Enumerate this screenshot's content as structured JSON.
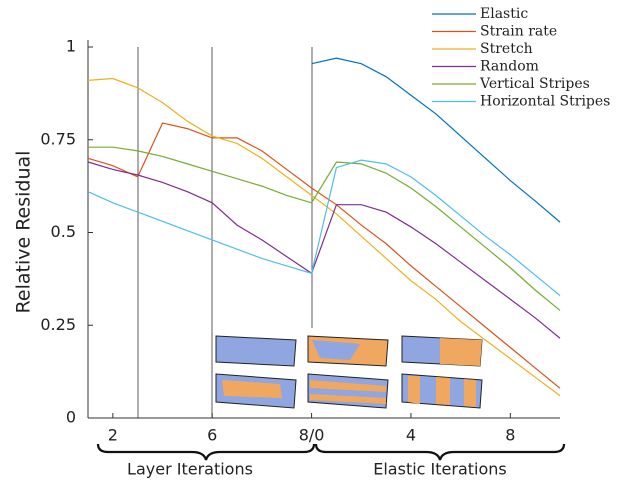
{
  "chart_data": {
    "type": "line",
    "ylabel": "Relative Residual",
    "x": [
      1,
      2,
      3,
      4,
      5,
      6,
      7,
      8,
      9,
      10,
      11,
      12,
      13,
      14,
      15,
      16,
      17,
      18,
      19,
      20
    ],
    "xlim": [
      1,
      20
    ],
    "xticks": [
      2,
      6,
      {
        "value": 10,
        "label": "8/0"
      },
      {
        "value": 14,
        "label": "4"
      },
      {
        "value": 18,
        "label": "8"
      }
    ],
    "ylim": [
      0,
      1
    ],
    "yticks": [
      0,
      0.25,
      0.5,
      0.75,
      1
    ],
    "annotations": [
      "Layer Iterations",
      "Elastic Iterations"
    ],
    "legend": "top-right",
    "series": [
      {
        "name": "Elastic",
        "color": "#0072bd",
        "values": [
          null,
          null,
          null,
          null,
          null,
          null,
          null,
          null,
          null,
          0.955,
          0.97,
          0.955,
          0.92,
          0.87,
          0.82,
          0.76,
          0.7,
          0.64,
          0.585,
          0.528
        ]
      },
      {
        "name": "Strain rate",
        "color": "#d95319",
        "values": [
          0.7,
          0.68,
          0.65,
          0.795,
          0.78,
          0.755,
          0.755,
          0.72,
          0.67,
          0.62,
          0.575,
          0.52,
          0.47,
          0.41,
          0.355,
          0.3,
          0.245,
          0.19,
          0.135,
          0.08
        ]
      },
      {
        "name": "Stretch",
        "color": "#edb120",
        "values": [
          0.91,
          0.915,
          0.89,
          0.85,
          0.8,
          0.76,
          0.74,
          0.7,
          0.65,
          0.6,
          0.55,
          0.49,
          0.43,
          0.37,
          0.32,
          0.26,
          0.21,
          0.16,
          0.11,
          0.06
        ]
      },
      {
        "name": "Random",
        "color": "#7e2f8e",
        "values": [
          0.69,
          0.67,
          0.655,
          0.635,
          0.61,
          0.58,
          0.52,
          0.48,
          0.435,
          0.39,
          0.575,
          0.575,
          0.555,
          0.515,
          0.47,
          0.42,
          0.37,
          0.32,
          0.27,
          0.215
        ]
      },
      {
        "name": "Vertical Stripes",
        "color": "#77ac30",
        "values": [
          0.73,
          0.73,
          0.72,
          0.705,
          0.685,
          0.665,
          0.645,
          0.625,
          0.6,
          0.58,
          0.69,
          0.685,
          0.66,
          0.62,
          0.57,
          0.515,
          0.46,
          0.405,
          0.345,
          0.29
        ]
      },
      {
        "name": "Horizontal Stripes",
        "color": "#4dbeee",
        "values": [
          0.61,
          0.58,
          0.555,
          0.53,
          0.505,
          0.48,
          0.455,
          0.43,
          0.41,
          0.39,
          0.675,
          0.695,
          0.685,
          0.65,
          0.6,
          0.545,
          0.49,
          0.44,
          0.385,
          0.33
        ]
      }
    ]
  }
}
